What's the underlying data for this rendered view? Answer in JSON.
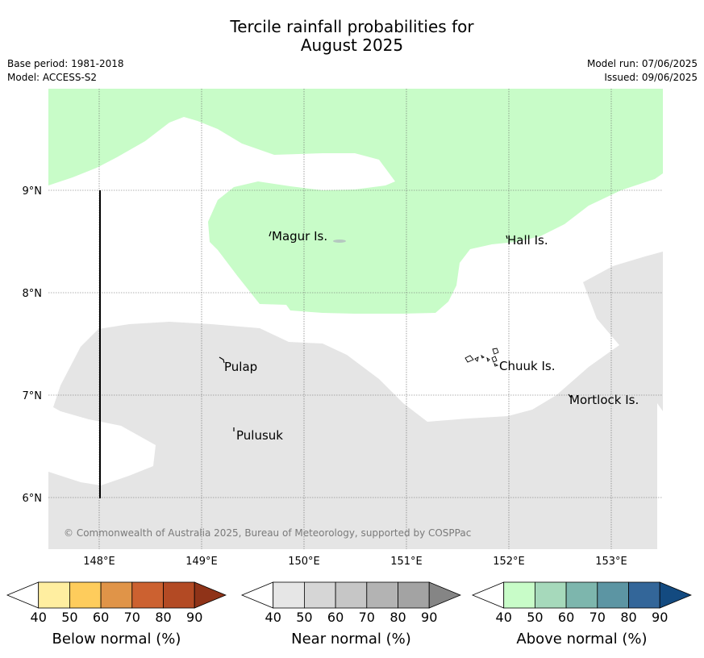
{
  "title_line1": "Tercile rainfall probabilities for",
  "title_line2": "August 2025",
  "base_period": "Base period: 1981-2018",
  "model": "Model: ACCESS-S2",
  "model_run": "Model run: 07/06/2025",
  "issued": "Issued: 09/06/2025",
  "copyright": "© Commonwealth of Australia 2025, Bureau of Meteorology, supported by COSPPac",
  "lat_labels": [
    "9°N",
    "8°N",
    "7°N",
    "6°N"
  ],
  "lon_labels": [
    "148°E",
    "149°E",
    "150°E",
    "151°E",
    "152°E",
    "153°E"
  ],
  "places": {
    "magur": "Magur Is.",
    "hall": "Hall Is.",
    "pulap": "Pulap",
    "chuuk": "Chuuk Is.",
    "mortlock": "Mortlock Is.",
    "pulusuk": "Pulusuk"
  },
  "colorbars": [
    {
      "label": "Below normal (%)",
      "ticks": [
        "40",
        "50",
        "60",
        "70",
        "80",
        "90"
      ],
      "colors": [
        "#ffffff",
        "#ffeea0",
        "#fecc5c",
        "#e09448",
        "#cc6130",
        "#b34a24",
        "#8f3318"
      ]
    },
    {
      "label": "Near normal (%)",
      "ticks": [
        "40",
        "50",
        "60",
        "70",
        "80",
        "90"
      ],
      "colors": [
        "#ffffff",
        "#e6e6e6",
        "#d6d6d6",
        "#c6c6c6",
        "#b3b3b3",
        "#a3a3a3",
        "#858585"
      ]
    },
    {
      "label": "Above normal (%)",
      "ticks": [
        "40",
        "50",
        "60",
        "70",
        "80",
        "90"
      ],
      "colors": [
        "#ffffff",
        "#c8fcc8",
        "#a6d9bb",
        "#7db6ad",
        "#5c95a3",
        "#336699",
        "#134a80"
      ]
    }
  ],
  "map_colors": {
    "above_40_50": "#c8fcc8",
    "near_40_50": "#e5e5e5",
    "background": "#ffffff"
  }
}
